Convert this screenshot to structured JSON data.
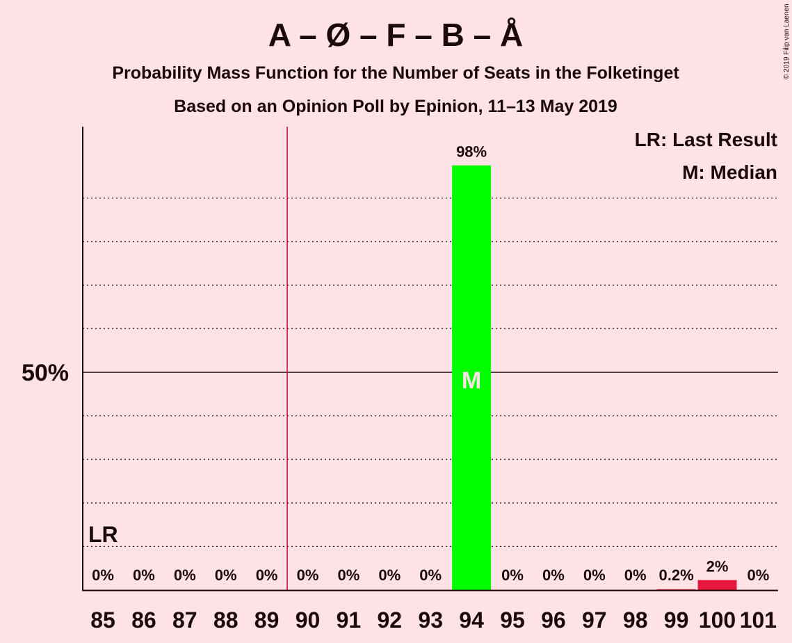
{
  "title": "A – Ø – F – B – Å",
  "subtitle1": "Probability Mass Function for the Number of Seats in the Folketinget",
  "subtitle2": "Based on an Opinion Poll by Epinion, 11–13 May 2019",
  "copyright": "© 2019 Filip van Laenen",
  "legend": {
    "last_result": "LR: Last Result",
    "median": "M: Median"
  },
  "markers": {
    "last_result_label": "LR",
    "median_label": "M"
  },
  "y_axis": {
    "label_50": "50%"
  },
  "colors": {
    "background": "#FFE2E6",
    "median_bar": "#00FF00",
    "other_bar": "#E8173D",
    "last_result_line": "#C8003C",
    "text": "#1a0a0a"
  },
  "chart_data": {
    "type": "bar",
    "categories": [
      "85",
      "86",
      "87",
      "88",
      "89",
      "90",
      "91",
      "92",
      "93",
      "94",
      "95",
      "96",
      "97",
      "98",
      "99",
      "100",
      "101"
    ],
    "values": [
      0,
      0,
      0,
      0,
      0,
      0,
      0,
      0,
      0,
      97.5,
      0,
      0,
      0,
      0,
      0.2,
      2.3,
      0
    ],
    "value_labels": [
      "0%",
      "0%",
      "0%",
      "0%",
      "0%",
      "0%",
      "0%",
      "0%",
      "0%",
      "98%",
      "0%",
      "0%",
      "0%",
      "0%",
      "0.2%",
      "2%",
      "0%"
    ],
    "ylim": [
      0,
      100
    ],
    "last_result": "89.5",
    "median": "94",
    "grid": "dotted every 10%, solid at 50%"
  }
}
